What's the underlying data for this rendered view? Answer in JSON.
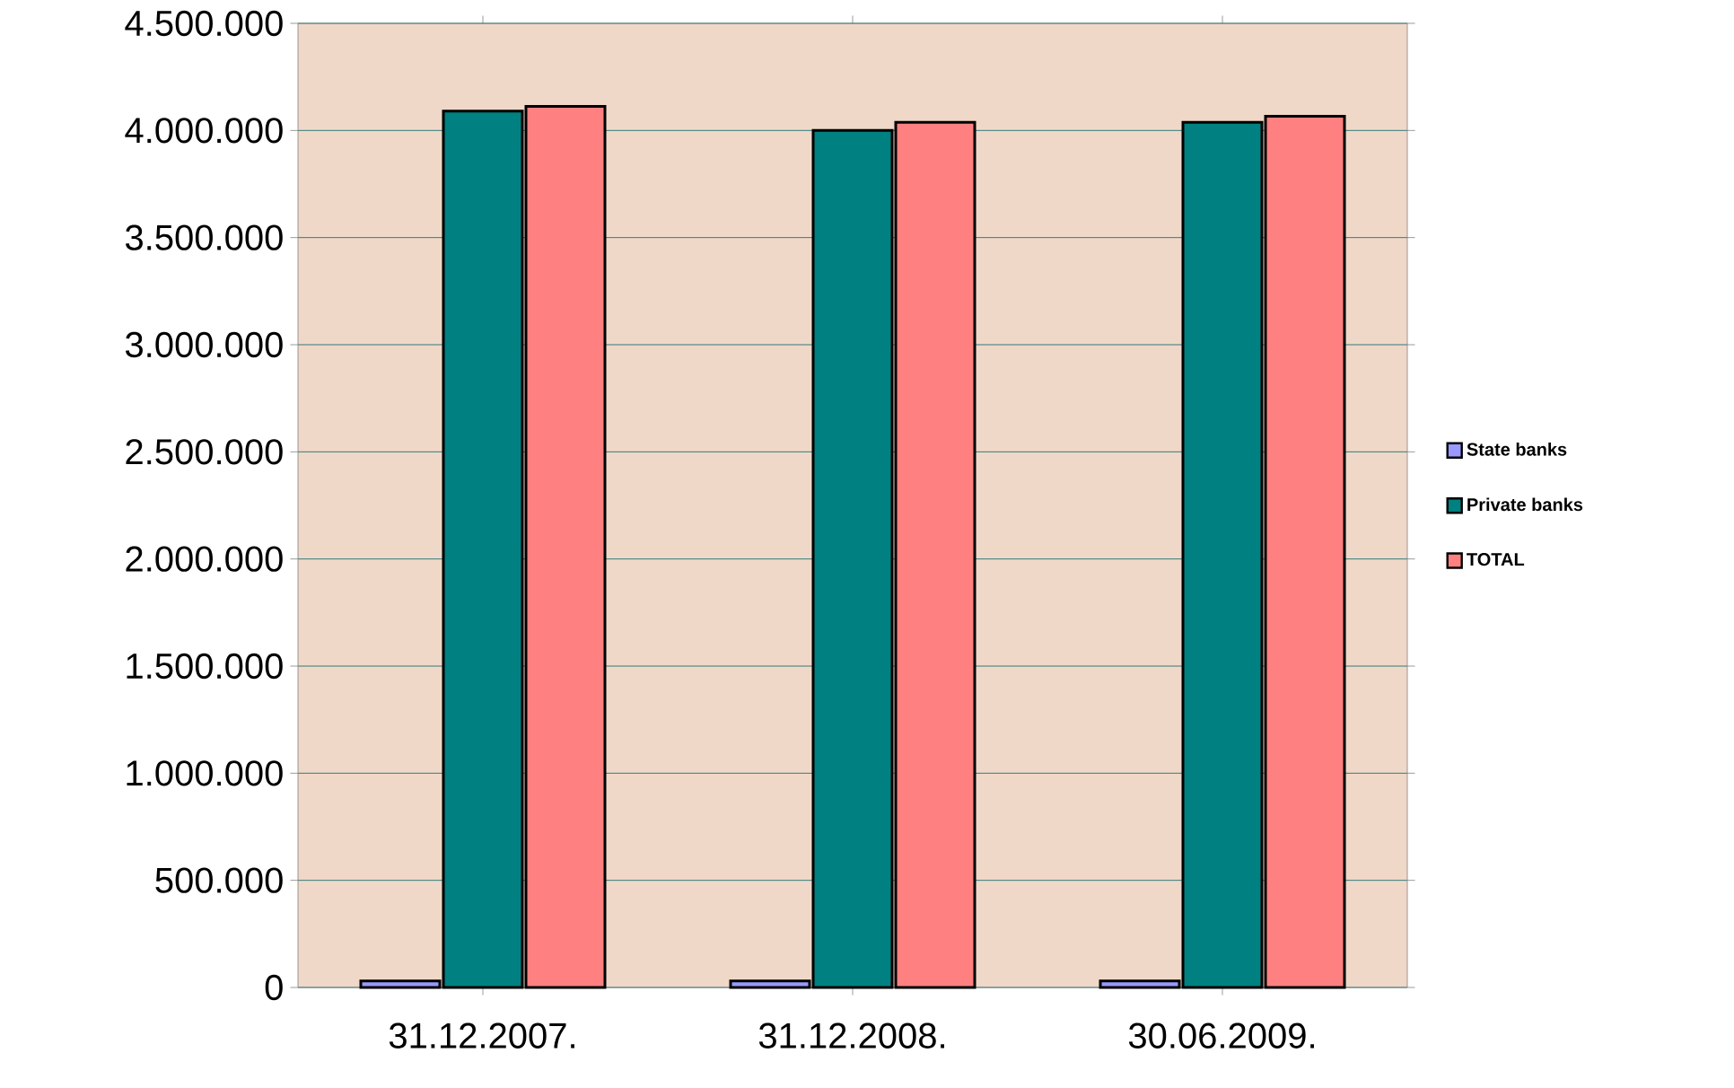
{
  "chart_data": {
    "type": "bar",
    "categories": [
      "31.12.2007.",
      "31.12.2008.",
      "30.06.2009."
    ],
    "series": [
      {
        "name": "State banks",
        "color": "#9999ff",
        "values": [
          30000,
          30000,
          30000
        ]
      },
      {
        "name": "Private banks",
        "color": "#008080",
        "values": [
          4090000,
          4000000,
          4038000
        ]
      },
      {
        "name": "TOTAL",
        "color": "#ff8080",
        "values": [
          4112000,
          4038000,
          4066000
        ]
      }
    ],
    "ylim": [
      0,
      4500000
    ],
    "yticks": [
      {
        "value": 0,
        "label": "0"
      },
      {
        "value": 500000,
        "label": "500.000"
      },
      {
        "value": 1000000,
        "label": "1.000.000"
      },
      {
        "value": 1500000,
        "label": "1.500.000"
      },
      {
        "value": 2000000,
        "label": "2.000.000"
      },
      {
        "value": 2500000,
        "label": "2.500.000"
      },
      {
        "value": 3000000,
        "label": "3.000.000"
      },
      {
        "value": 3500000,
        "label": "3.500.000"
      },
      {
        "value": 4000000,
        "label": "4.000.000"
      },
      {
        "value": 4500000,
        "label": "4.500.000"
      }
    ],
    "grid": "y",
    "legend": "right"
  }
}
